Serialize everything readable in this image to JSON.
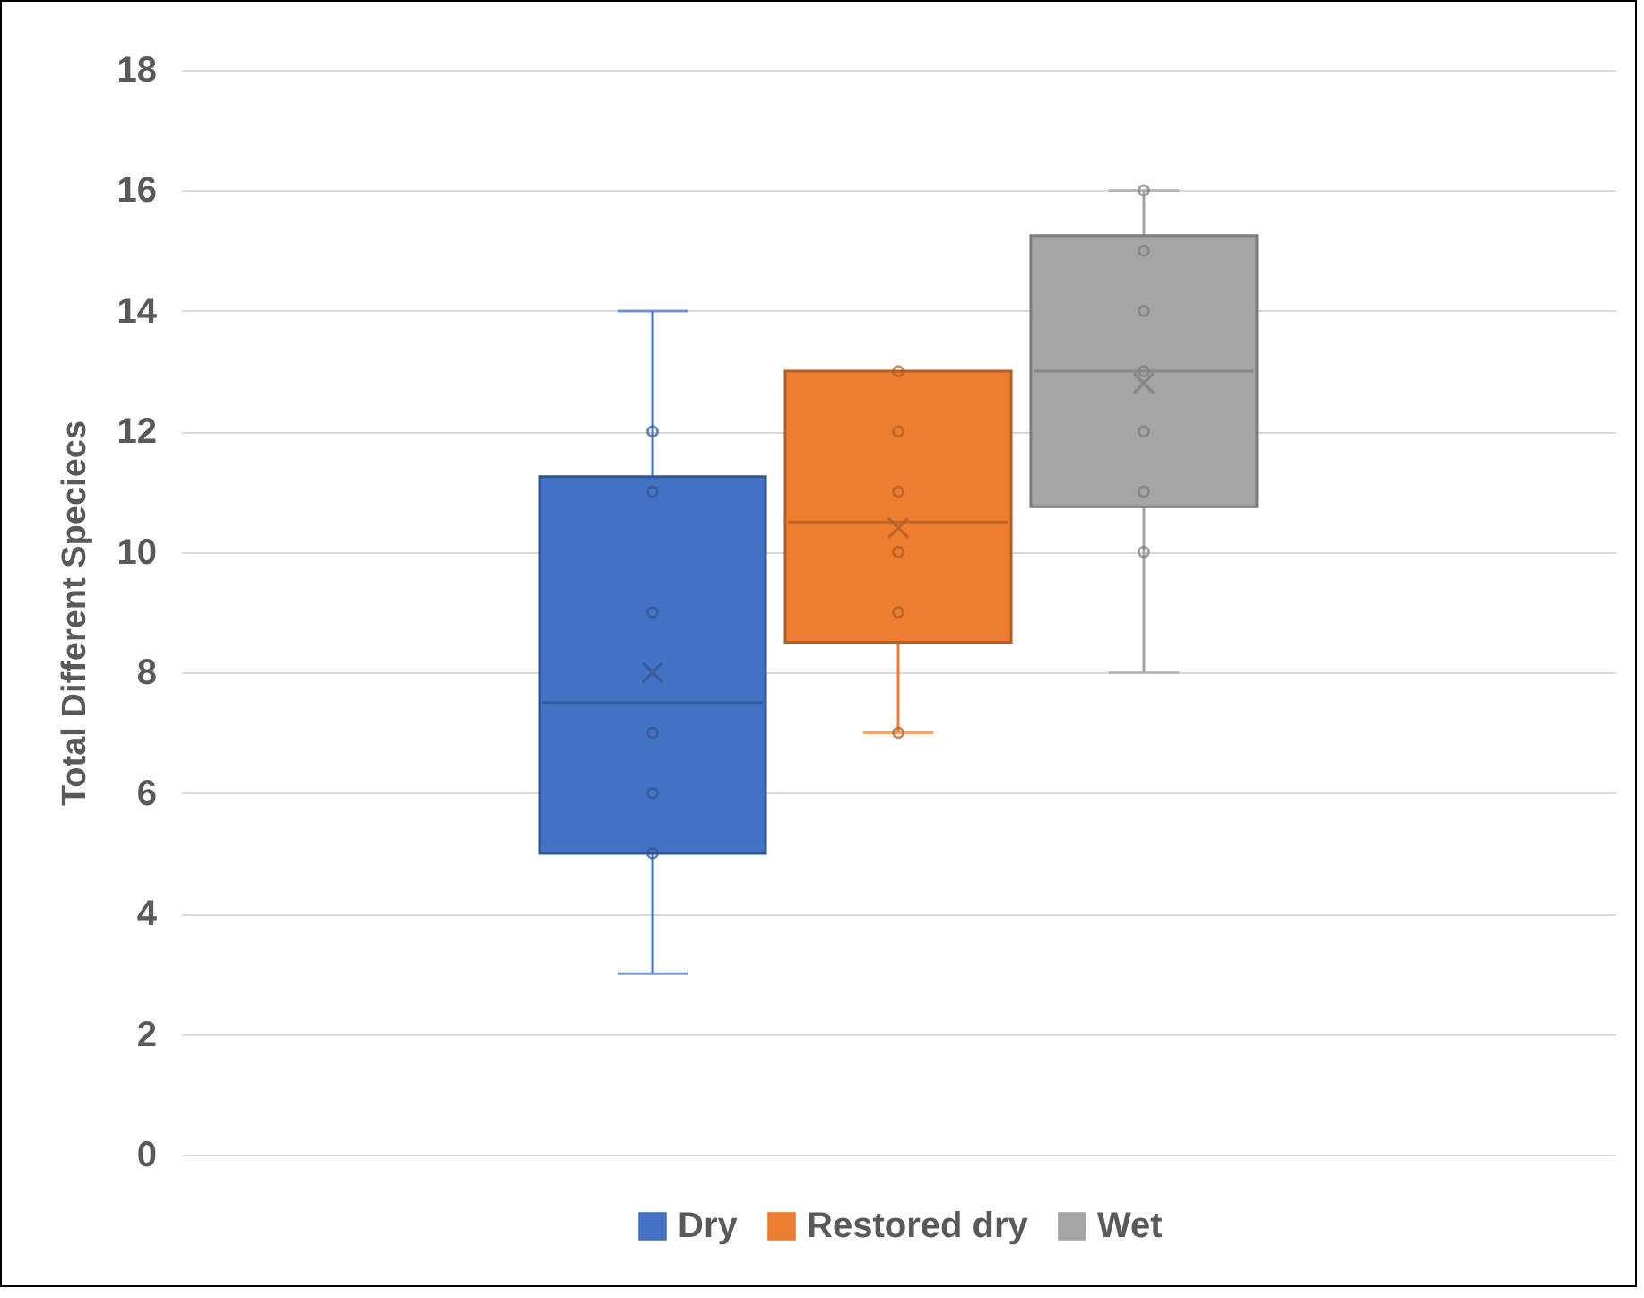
{
  "chart_data": {
    "type": "box",
    "ylabel": "Total Different Speciecs",
    "categories": [
      null
    ],
    "series": [
      {
        "name": "Dry",
        "color": "#4472c4",
        "boxes": [
          {
            "low": 3,
            "q1": 5,
            "median": 7.5,
            "q3": 11.25,
            "high": 14,
            "mean": 8,
            "outliers": [
              5,
              6,
              7,
              9,
              11,
              12
            ]
          }
        ]
      },
      {
        "name": "Restored dry",
        "color": "#ed7d31",
        "boxes": [
          {
            "low": 7,
            "q1": 8.5,
            "median": 10.5,
            "q3": 13,
            "high": 13,
            "mean": 10.4,
            "outliers": [
              7,
              9,
              10,
              11,
              12,
              13
            ]
          }
        ]
      },
      {
        "name": "Wet",
        "color": "#a5a5a5",
        "boxes": [
          {
            "low": 8,
            "q1": 10.75,
            "median": 13,
            "q3": 15.25,
            "high": 16,
            "mean": 12.8,
            "outliers": [
              10,
              11,
              12,
              13,
              14,
              15,
              16
            ]
          }
        ]
      }
    ],
    "ylim": [
      0,
      18
    ],
    "yticks": [
      0,
      2,
      4,
      6,
      8,
      10,
      12,
      14,
      16,
      18
    ],
    "grid": "y",
    "legend": "bottom"
  }
}
